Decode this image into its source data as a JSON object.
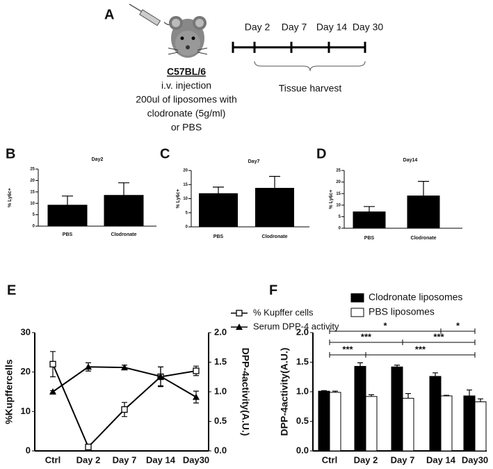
{
  "diagram": {
    "letter": "A",
    "strain": "C57BL/6",
    "lines": [
      "i.v. injection",
      "200ul  of liposomes with",
      "clodronate (5g/ml)",
      "or PBS"
    ],
    "timeline": [
      "Day 2",
      "Day 7",
      "Day 14",
      "Day 30"
    ],
    "harvest": "Tissue harvest"
  },
  "chart_data": [
    {
      "panel": "B",
      "type": "bar",
      "title": "Day2",
      "ylabel": "% Ly6c+",
      "categories": [
        "PBS",
        "Clodronate"
      ],
      "values": [
        9.2,
        13.5
      ],
      "errors": [
        4,
        5.5
      ],
      "color": "#000000",
      "ylim": [
        0,
        25
      ],
      "yticks": [
        0,
        5,
        10,
        15,
        20,
        25
      ]
    },
    {
      "panel": "C",
      "type": "bar",
      "title": "Day7",
      "ylabel": "% Ly6c+",
      "categories": [
        "PBS",
        "Clodronate"
      ],
      "values": [
        11.8,
        13.7
      ],
      "errors": [
        2.3,
        4.2
      ],
      "color": "#000000",
      "ylim": [
        0,
        20
      ],
      "yticks": [
        0,
        5,
        10,
        15,
        20
      ]
    },
    {
      "panel": "D",
      "type": "bar",
      "title": "Day14",
      "ylabel": "% Ly6c+",
      "categories": [
        "PBS",
        "Clodronate"
      ],
      "values": [
        7.1,
        14
      ],
      "errors": [
        2.3,
        6.3
      ],
      "color": "#000000",
      "ylim": [
        0,
        25
      ],
      "yticks": [
        0,
        5,
        10,
        15,
        20,
        25
      ]
    },
    {
      "panel": "E",
      "type": "line",
      "ylabel": "%Kupffercells",
      "y2label": "DPP-4activity(A.U.)",
      "categories": [
        "Ctrl",
        "Day 2",
        "Day 7",
        "Day 14",
        "Day30"
      ],
      "series": [
        {
          "name": "% Kupffer cells",
          "marker": "square",
          "color": "#000000",
          "values": [
            22,
            1,
            10.5,
            18.8,
            20.3
          ],
          "errors": [
            3.2,
            0.5,
            1.8,
            2.5,
            1.2
          ]
        },
        {
          "name": "Serum DPP-4 activity",
          "marker": "triangle",
          "axis": "y2",
          "color": "#000000",
          "values": [
            1.0,
            1.42,
            1.41,
            1.26,
            0.91
          ],
          "errors": [
            0.02,
            0.07,
            0.04,
            0.16,
            0.1
          ]
        }
      ],
      "ylim": [
        0,
        30
      ],
      "yticks": [
        0,
        10,
        20,
        30
      ],
      "y2lim": [
        0,
        2
      ],
      "y2ticks": [
        {
          "value": 0,
          "label": "0.0"
        },
        {
          "value": 0.5,
          "label": "0.5"
        },
        {
          "value": 1,
          "label": "1.0"
        },
        {
          "value": 1.5,
          "label": "1.5"
        },
        {
          "value": 2,
          "label": "2.0"
        }
      ]
    },
    {
      "panel": "F",
      "type": "bar",
      "ylabel": "DPP-4activity(A.U.)",
      "categories": [
        "Ctrl",
        "Day 2",
        "Day 7",
        "Day 14",
        "Day30"
      ],
      "series": [
        {
          "name": "Clodronate liposomes",
          "color": "#000000",
          "values": [
            1.01,
            1.43,
            1.42,
            1.26,
            0.93
          ],
          "errors": [
            0.01,
            0.06,
            0.03,
            0.06,
            0.1
          ]
        },
        {
          "name": "PBS liposomes",
          "color": "#ffffff",
          "values": [
            0.99,
            0.92,
            0.89,
            0.93,
            0.83
          ],
          "errors": [
            0.02,
            0.03,
            0.08,
            0.01,
            0.05
          ]
        }
      ],
      "ylim": [
        0,
        2
      ],
      "yticks": [
        {
          "value": 0,
          "label": "0.0"
        },
        {
          "value": 0.5,
          "label": "0.5"
        },
        {
          "value": 1,
          "label": "1.0"
        },
        {
          "value": 1.5,
          "label": "1.5"
        },
        {
          "value": 2,
          "label": "2.0"
        }
      ],
      "significance": [
        "*",
        "*",
        "***",
        "***",
        "***",
        "***"
      ]
    }
  ]
}
